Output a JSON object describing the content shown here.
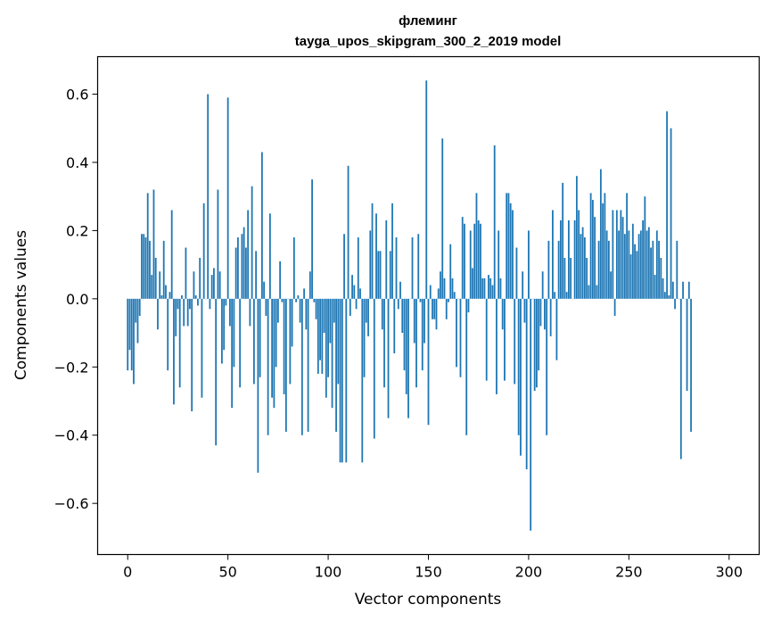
{
  "chart_data": {
    "type": "bar",
    "title": "флеминг",
    "subtitle": "tayga_upos_skipgram_300_2_2019 model",
    "xlabel": "Vector components",
    "ylabel": "Components values",
    "xlim": [
      -15,
      315
    ],
    "ylim": [
      -0.75,
      0.71
    ],
    "xticks": [
      0,
      50,
      100,
      150,
      200,
      250,
      300
    ],
    "xtick_labels": [
      "0",
      "50",
      "100",
      "150",
      "200",
      "250",
      "300"
    ],
    "yticks": [
      -0.6,
      -0.4,
      -0.2,
      0.0,
      0.2,
      0.4,
      0.6
    ],
    "ytick_labels": [
      "−0.6",
      "−0.4",
      "−0.2",
      "0.0",
      "0.2",
      "0.4",
      "0.6"
    ],
    "grid": false,
    "bar_color": "#1f77b4",
    "x": "components 0 to 299 (index)",
    "values": [
      -0.21,
      -0.15,
      -0.21,
      -0.25,
      -0.07,
      -0.13,
      -0.05,
      0.19,
      0.19,
      0.18,
      0.31,
      0.17,
      0.07,
      0.32,
      0.12,
      -0.09,
      0.08,
      0.01,
      0.17,
      0.04,
      -0.21,
      0.02,
      0.26,
      -0.31,
      -0.11,
      -0.03,
      -0.26,
      0.01,
      -0.08,
      0.15,
      -0.08,
      -0.03,
      -0.33,
      0.08,
      0.01,
      -0.02,
      0.12,
      -0.29,
      0.28,
      0.0,
      0.6,
      -0.03,
      0.07,
      0.09,
      -0.43,
      0.32,
      0.08,
      -0.19,
      -0.15,
      -0.02,
      0.59,
      -0.08,
      -0.32,
      -0.2,
      0.15,
      0.18,
      -0.26,
      0.19,
      0.21,
      0.15,
      0.26,
      -0.08,
      0.33,
      -0.25,
      0.14,
      -0.51,
      -0.23,
      0.43,
      0.05,
      -0.05,
      -0.4,
      0.25,
      -0.29,
      -0.32,
      -0.2,
      -0.07,
      0.11,
      -0.01,
      -0.28,
      -0.39,
      0.0,
      -0.25,
      -0.14,
      0.18,
      -0.01,
      0.01,
      -0.07,
      -0.4,
      0.03,
      -0.09,
      -0.39,
      0.08,
      0.35,
      -0.01,
      -0.06,
      -0.22,
      -0.18,
      -0.22,
      -0.1,
      -0.29,
      -0.23,
      -0.13,
      -0.32,
      -0.07,
      -0.39,
      -0.25,
      -0.48,
      -0.48,
      0.19,
      -0.48,
      0.39,
      -0.05,
      0.07,
      0.04,
      -0.03,
      0.18,
      0.03,
      -0.48,
      -0.23,
      -0.07,
      -0.11,
      0.2,
      0.28,
      -0.41,
      0.25,
      0.14,
      0.14,
      -0.09,
      -0.26,
      0.23,
      -0.35,
      0.14,
      0.28,
      -0.16,
      0.18,
      -0.03,
      0.05,
      -0.1,
      -0.21,
      -0.28,
      -0.35,
      0.0,
      0.18,
      -0.13,
      -0.26,
      0.19,
      -0.01,
      -0.21,
      -0.13,
      0.64,
      -0.37,
      0.04,
      -0.06,
      -0.06,
      -0.09,
      0.03,
      0.08,
      0.47,
      0.06,
      -0.06,
      -0.01,
      0.16,
      0.06,
      0.02,
      -0.2,
      0.0,
      -0.23,
      0.24,
      0.22,
      -0.4,
      -0.04,
      0.2,
      0.09,
      0.22,
      0.31,
      0.23,
      0.22,
      0.06,
      0.06,
      -0.24,
      0.07,
      0.06,
      0.04,
      0.45,
      -0.28,
      0.2,
      0.06,
      -0.09,
      -0.24,
      0.31,
      0.31,
      0.28,
      0.26,
      -0.25,
      0.15,
      -0.4,
      -0.46,
      0.08,
      -0.07,
      -0.5,
      0.2,
      -0.68,
      0.0,
      -0.27,
      -0.26,
      -0.21,
      -0.08,
      0.08,
      -0.09,
      -0.4,
      0.17,
      -0.11,
      0.26,
      0.02,
      -0.18,
      0.17,
      0.23,
      0.34,
      0.12,
      0.02,
      0.23,
      0.12,
      0.0,
      0.23,
      0.36,
      0.26,
      0.19,
      0.21,
      0.18,
      0.12,
      0.04,
      0.31,
      0.29,
      0.24,
      0.04,
      0.17,
      0.38,
      0.28,
      0.31,
      0.2,
      0.17,
      0.08,
      0.26,
      -0.05,
      0.26,
      0.2,
      0.26,
      0.24,
      0.19,
      0.31,
      0.2,
      0.13,
      0.22,
      0.16,
      0.14,
      0.19,
      0.2,
      0.23,
      0.3,
      0.2,
      0.21,
      0.15,
      0.17,
      0.07,
      0.2,
      0.17,
      0.12,
      0.06,
      0.02,
      0.55,
      0.01,
      0.5,
      0.05,
      -0.03,
      0.17,
      0.0,
      -0.47,
      0.05,
      0.0,
      -0.27,
      0.05,
      -0.39
    ]
  }
}
